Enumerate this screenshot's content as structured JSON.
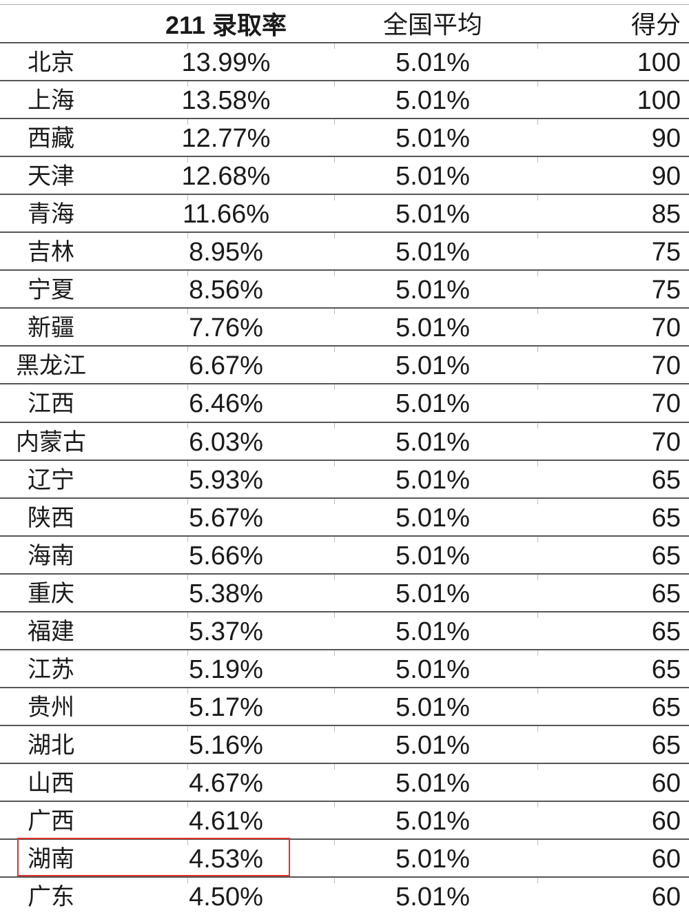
{
  "table": {
    "headers": {
      "province": "",
      "rate": "211 录取率",
      "national_avg": "全国平均",
      "score": "得分"
    },
    "rows": [
      {
        "province": "北京",
        "rate": "13.99%",
        "national_avg": "5.01%",
        "score": "100"
      },
      {
        "province": "上海",
        "rate": "13.58%",
        "national_avg": "5.01%",
        "score": "100"
      },
      {
        "province": "西藏",
        "rate": "12.77%",
        "national_avg": "5.01%",
        "score": "90"
      },
      {
        "province": "天津",
        "rate": "12.68%",
        "national_avg": "5.01%",
        "score": "90"
      },
      {
        "province": "青海",
        "rate": "11.66%",
        "national_avg": "5.01%",
        "score": "85"
      },
      {
        "province": "吉林",
        "rate": "8.95%",
        "national_avg": "5.01%",
        "score": "75"
      },
      {
        "province": "宁夏",
        "rate": "8.56%",
        "national_avg": "5.01%",
        "score": "75"
      },
      {
        "province": "新疆",
        "rate": "7.76%",
        "national_avg": "5.01%",
        "score": "70"
      },
      {
        "province": "黑龙江",
        "rate": "6.67%",
        "national_avg": "5.01%",
        "score": "70"
      },
      {
        "province": "江西",
        "rate": "6.46%",
        "national_avg": "5.01%",
        "score": "70"
      },
      {
        "province": "内蒙古",
        "rate": "6.03%",
        "national_avg": "5.01%",
        "score": "70"
      },
      {
        "province": "辽宁",
        "rate": "5.93%",
        "national_avg": "5.01%",
        "score": "65"
      },
      {
        "province": "陕西",
        "rate": "5.67%",
        "national_avg": "5.01%",
        "score": "65"
      },
      {
        "province": "海南",
        "rate": "5.66%",
        "national_avg": "5.01%",
        "score": "65"
      },
      {
        "province": "重庆",
        "rate": "5.38%",
        "national_avg": "5.01%",
        "score": "65"
      },
      {
        "province": "福建",
        "rate": "5.37%",
        "national_avg": "5.01%",
        "score": "65"
      },
      {
        "province": "江苏",
        "rate": "5.19%",
        "national_avg": "5.01%",
        "score": "65"
      },
      {
        "province": "贵州",
        "rate": "5.17%",
        "national_avg": "5.01%",
        "score": "65"
      },
      {
        "province": "湖北",
        "rate": "5.16%",
        "national_avg": "5.01%",
        "score": "65"
      },
      {
        "province": "山西",
        "rate": "4.67%",
        "national_avg": "5.01%",
        "score": "60"
      },
      {
        "province": "广西",
        "rate": "4.61%",
        "national_avg": "5.01%",
        "score": "60"
      },
      {
        "province": "湖南",
        "rate": "4.53%",
        "national_avg": "5.01%",
        "score": "60",
        "highlighted": true
      },
      {
        "province": "广东",
        "rate": "4.50%",
        "national_avg": "5.01%",
        "score": "60"
      }
    ]
  },
  "colors": {
    "highlight_border": "#e0302c",
    "rule": "#555555"
  }
}
